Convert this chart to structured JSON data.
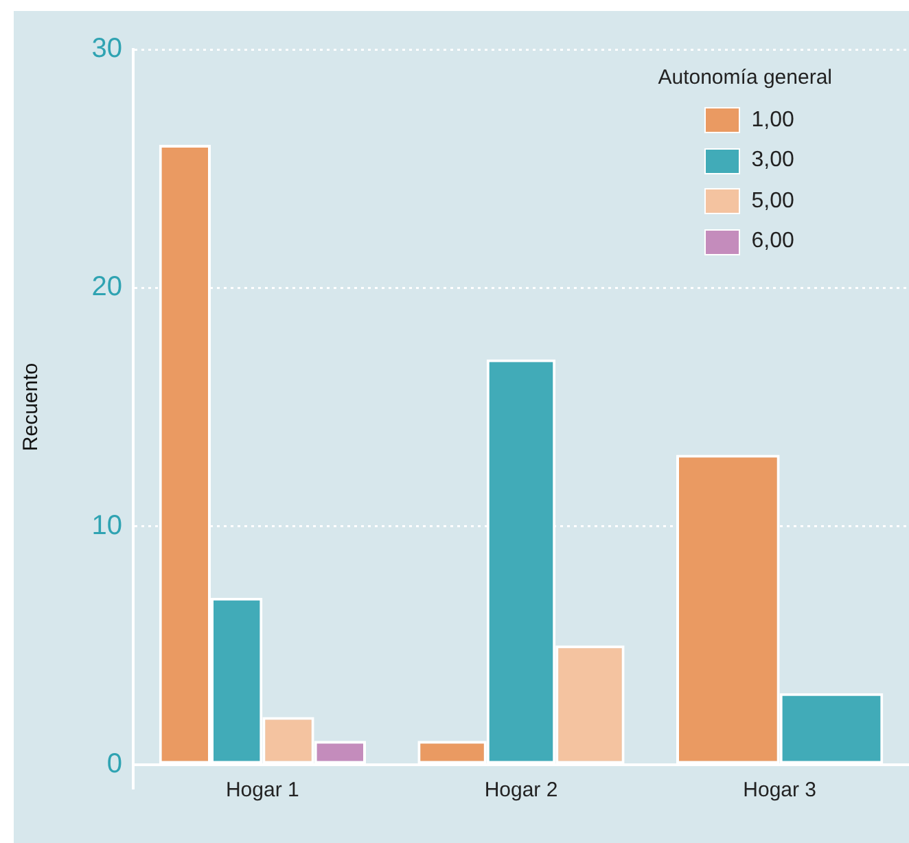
{
  "chart_data": {
    "type": "bar",
    "ylabel": "Recuento",
    "legend_title": "Autonomía general",
    "categories": [
      "Hogar 1",
      "Hogar 2",
      "Hogar 3"
    ],
    "series": [
      {
        "name": "1,00",
        "color": "#ea9a62",
        "values": [
          26,
          1,
          13
        ]
      },
      {
        "name": "3,00",
        "color": "#41abb8",
        "values": [
          7,
          17,
          3
        ]
      },
      {
        "name": "5,00",
        "color": "#f4c3a0",
        "values": [
          2,
          5,
          null
        ]
      },
      {
        "name": "6,00",
        "color": "#c48cbc",
        "values": [
          1,
          null,
          null
        ]
      }
    ],
    "ylim": [
      0,
      30
    ],
    "yticks": [
      0,
      10,
      20,
      30
    ],
    "grid": "y",
    "legend": "top right"
  }
}
